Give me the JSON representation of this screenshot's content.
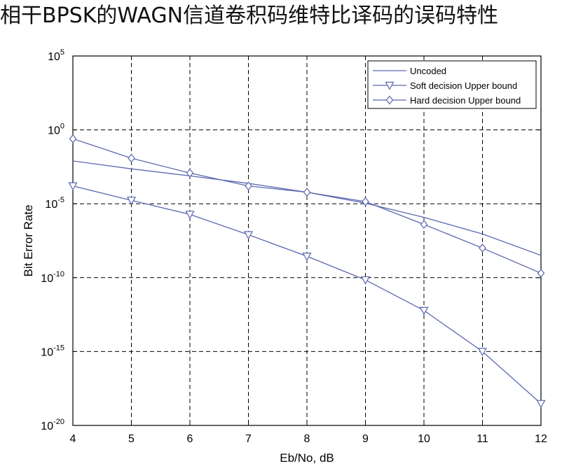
{
  "title": "相干BPSK的WAGN信道卷积码维特比译码的误码特性",
  "chart_data": {
    "type": "line",
    "xlabel": "Eb/No, dB",
    "ylabel": "Bit Error Rate",
    "x": [
      4,
      5,
      6,
      7,
      8,
      9,
      10,
      11,
      12
    ],
    "xlim": [
      4,
      12
    ],
    "xticks": [
      "4",
      "5",
      "6",
      "7",
      "8",
      "9",
      "10",
      "11",
      "12"
    ],
    "yscale": "log",
    "ylim": [
      1e-20,
      100000
    ],
    "yticks": [
      {
        "base": "10",
        "exp": "5"
      },
      {
        "base": "10",
        "exp": "0"
      },
      {
        "base": "10",
        "exp": "-5"
      },
      {
        "base": "10",
        "exp": "-10"
      },
      {
        "base": "10",
        "exp": "-15"
      },
      {
        "base": "10",
        "exp": "-20"
      }
    ],
    "grid": true,
    "legend_position": "top-right",
    "line_color": "#5b68b0",
    "series": [
      {
        "name": "Uncoded",
        "marker": "none",
        "values": [
          0.0079,
          0.0023,
          0.00077,
          0.00024,
          6e-05,
          1.1e-05,
          1.2e-06,
          9e-08,
          3.2e-09
        ]
      },
      {
        "name": "Soft decision Upper bound",
        "marker": "triangle-down",
        "values": [
          0.00016,
          1.7e-05,
          1.9e-06,
          8e-08,
          2.8e-09,
          7e-11,
          6e-13,
          1e-15,
          3e-19
        ]
      },
      {
        "name": "Hard decision Upper bound",
        "marker": "diamond",
        "values": [
          0.25,
          0.012,
          0.0012,
          0.00016,
          6e-05,
          1.4e-05,
          4e-07,
          1e-08,
          2e-10
        ]
      }
    ]
  }
}
